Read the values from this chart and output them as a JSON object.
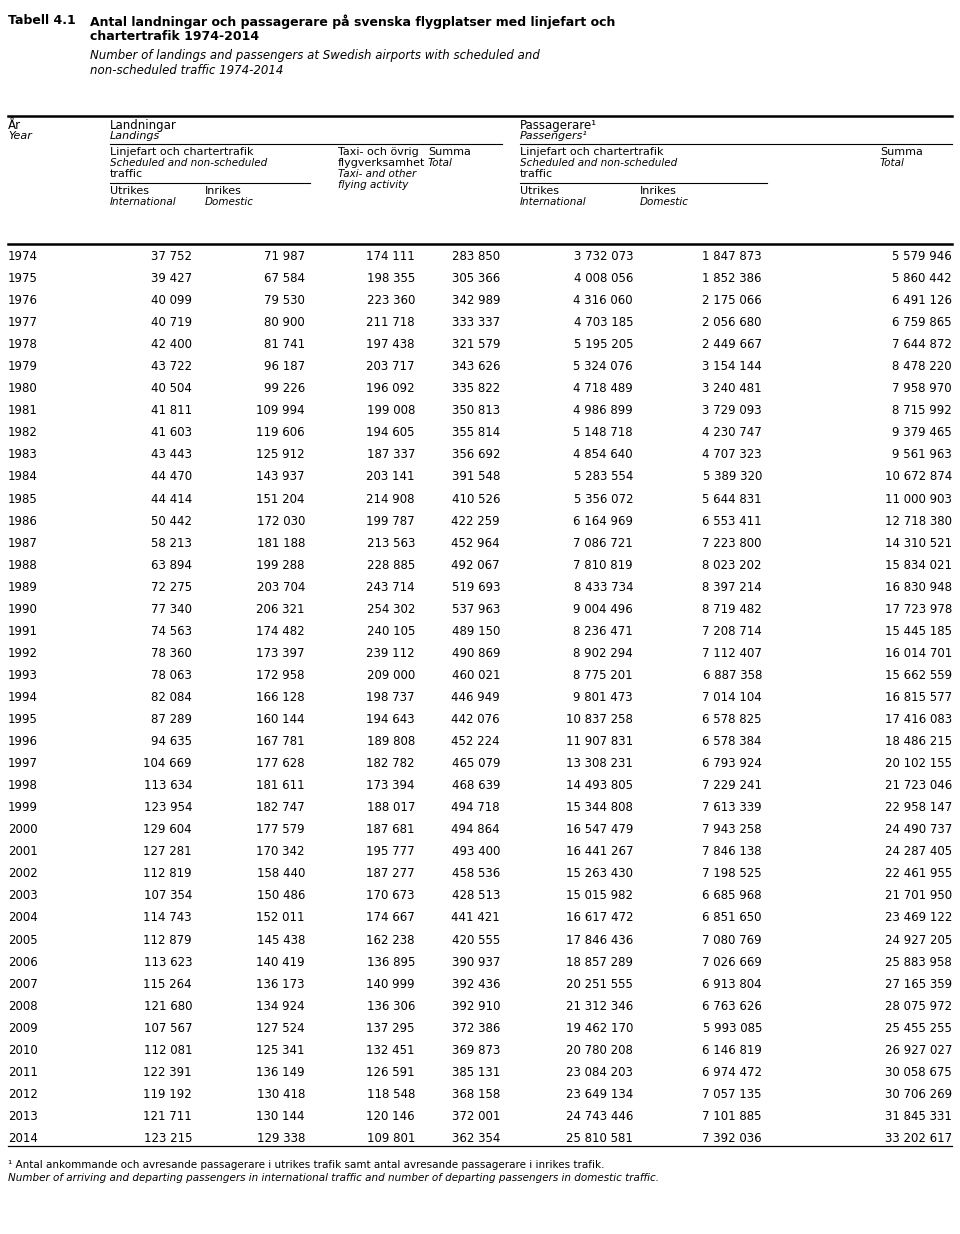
{
  "rows": [
    [
      "1974",
      "37 752",
      "71 987",
      "174 111",
      "283 850",
      "3 732 073",
      "1 847 873",
      "5 579 946"
    ],
    [
      "1975",
      "39 427",
      "67 584",
      "198 355",
      "305 366",
      "4 008 056",
      "1 852 386",
      "5 860 442"
    ],
    [
      "1976",
      "40 099",
      "79 530",
      "223 360",
      "342 989",
      "4 316 060",
      "2 175 066",
      "6 491 126"
    ],
    [
      "1977",
      "40 719",
      "80 900",
      "211 718",
      "333 337",
      "4 703 185",
      "2 056 680",
      "6 759 865"
    ],
    [
      "1978",
      "42 400",
      "81 741",
      "197 438",
      "321 579",
      "5 195 205",
      "2 449 667",
      "7 644 872"
    ],
    [
      "1979",
      "43 722",
      "96 187",
      "203 717",
      "343 626",
      "5 324 076",
      "3 154 144",
      "8 478 220"
    ],
    [
      "1980",
      "40 504",
      "99 226",
      "196 092",
      "335 822",
      "4 718 489",
      "3 240 481",
      "7 958 970"
    ],
    [
      "1981",
      "41 811",
      "109 994",
      "199 008",
      "350 813",
      "4 986 899",
      "3 729 093",
      "8 715 992"
    ],
    [
      "1982",
      "41 603",
      "119 606",
      "194 605",
      "355 814",
      "5 148 718",
      "4 230 747",
      "9 379 465"
    ],
    [
      "1983",
      "43 443",
      "125 912",
      "187 337",
      "356 692",
      "4 854 640",
      "4 707 323",
      "9 561 963"
    ],
    [
      "1984",
      "44 470",
      "143 937",
      "203 141",
      "391 548",
      "5 283 554",
      "5 389 320",
      "10 672 874"
    ],
    [
      "1985",
      "44 414",
      "151 204",
      "214 908",
      "410 526",
      "5 356 072",
      "5 644 831",
      "11 000 903"
    ],
    [
      "1986",
      "50 442",
      "172 030",
      "199 787",
      "422 259",
      "6 164 969",
      "6 553 411",
      "12 718 380"
    ],
    [
      "1987",
      "58 213",
      "181 188",
      "213 563",
      "452 964",
      "7 086 721",
      "7 223 800",
      "14 310 521"
    ],
    [
      "1988",
      "63 894",
      "199 288",
      "228 885",
      "492 067",
      "7 810 819",
      "8 023 202",
      "15 834 021"
    ],
    [
      "1989",
      "72 275",
      "203 704",
      "243 714",
      "519 693",
      "8 433 734",
      "8 397 214",
      "16 830 948"
    ],
    [
      "1990",
      "77 340",
      "206 321",
      "254 302",
      "537 963",
      "9 004 496",
      "8 719 482",
      "17 723 978"
    ],
    [
      "1991",
      "74 563",
      "174 482",
      "240 105",
      "489 150",
      "8 236 471",
      "7 208 714",
      "15 445 185"
    ],
    [
      "1992",
      "78 360",
      "173 397",
      "239 112",
      "490 869",
      "8 902 294",
      "7 112 407",
      "16 014 701"
    ],
    [
      "1993",
      "78 063",
      "172 958",
      "209 000",
      "460 021",
      "8 775 201",
      "6 887 358",
      "15 662 559"
    ],
    [
      "1994",
      "82 084",
      "166 128",
      "198 737",
      "446 949",
      "9 801 473",
      "7 014 104",
      "16 815 577"
    ],
    [
      "1995",
      "87 289",
      "160 144",
      "194 643",
      "442 076",
      "10 837 258",
      "6 578 825",
      "17 416 083"
    ],
    [
      "1996",
      "94 635",
      "167 781",
      "189 808",
      "452 224",
      "11 907 831",
      "6 578 384",
      "18 486 215"
    ],
    [
      "1997",
      "104 669",
      "177 628",
      "182 782",
      "465 079",
      "13 308 231",
      "6 793 924",
      "20 102 155"
    ],
    [
      "1998",
      "113 634",
      "181 611",
      "173 394",
      "468 639",
      "14 493 805",
      "7 229 241",
      "21 723 046"
    ],
    [
      "1999",
      "123 954",
      "182 747",
      "188 017",
      "494 718",
      "15 344 808",
      "7 613 339",
      "22 958 147"
    ],
    [
      "2000",
      "129 604",
      "177 579",
      "187 681",
      "494 864",
      "16 547 479",
      "7 943 258",
      "24 490 737"
    ],
    [
      "2001",
      "127 281",
      "170 342",
      "195 777",
      "493 400",
      "16 441 267",
      "7 846 138",
      "24 287 405"
    ],
    [
      "2002",
      "112 819",
      "158 440",
      "187 277",
      "458 536",
      "15 263 430",
      "7 198 525",
      "22 461 955"
    ],
    [
      "2003",
      "107 354",
      "150 486",
      "170 673",
      "428 513",
      "15 015 982",
      "6 685 968",
      "21 701 950"
    ],
    [
      "2004",
      "114 743",
      "152 011",
      "174 667",
      "441 421",
      "16 617 472",
      "6 851 650",
      "23 469 122"
    ],
    [
      "2005",
      "112 879",
      "145 438",
      "162 238",
      "420 555",
      "17 846 436",
      "7 080 769",
      "24 927 205"
    ],
    [
      "2006",
      "113 623",
      "140 419",
      "136 895",
      "390 937",
      "18 857 289",
      "7 026 669",
      "25 883 958"
    ],
    [
      "2007",
      "115 264",
      "136 173",
      "140 999",
      "392 436",
      "20 251 555",
      "6 913 804",
      "27 165 359"
    ],
    [
      "2008",
      "121 680",
      "134 924",
      "136 306",
      "392 910",
      "21 312 346",
      "6 763 626",
      "28 075 972"
    ],
    [
      "2009",
      "107 567",
      "127 524",
      "137 295",
      "372 386",
      "19 462 170",
      "5 993 085",
      "25 455 255"
    ],
    [
      "2010",
      "112 081",
      "125 341",
      "132 451",
      "369 873",
      "20 780 208",
      "6 146 819",
      "26 927 027"
    ],
    [
      "2011",
      "122 391",
      "136 149",
      "126 591",
      "385 131",
      "23 084 203",
      "6 974 472",
      "30 058 675"
    ],
    [
      "2012",
      "119 192",
      "130 418",
      "118 548",
      "368 158",
      "23 649 134",
      "7 057 135",
      "30 706 269"
    ],
    [
      "2013",
      "121 711",
      "130 144",
      "120 146",
      "372 001",
      "24 743 446",
      "7 101 885",
      "31 845 331"
    ],
    [
      "2014",
      "123 215",
      "129 338",
      "109 801",
      "362 354",
      "25 810 581",
      "7 392 036",
      "33 202 617"
    ]
  ],
  "footnote_sv": "¹ Antal ankommande och avresande passagerare i utrikes trafik samt antal avresande passagerare i inrikes trafik.",
  "footnote_en": "Number of arriving and departing passengers in international traffic and number of departing passengers in domestic traffic.",
  "bg_color": "#ffffff"
}
